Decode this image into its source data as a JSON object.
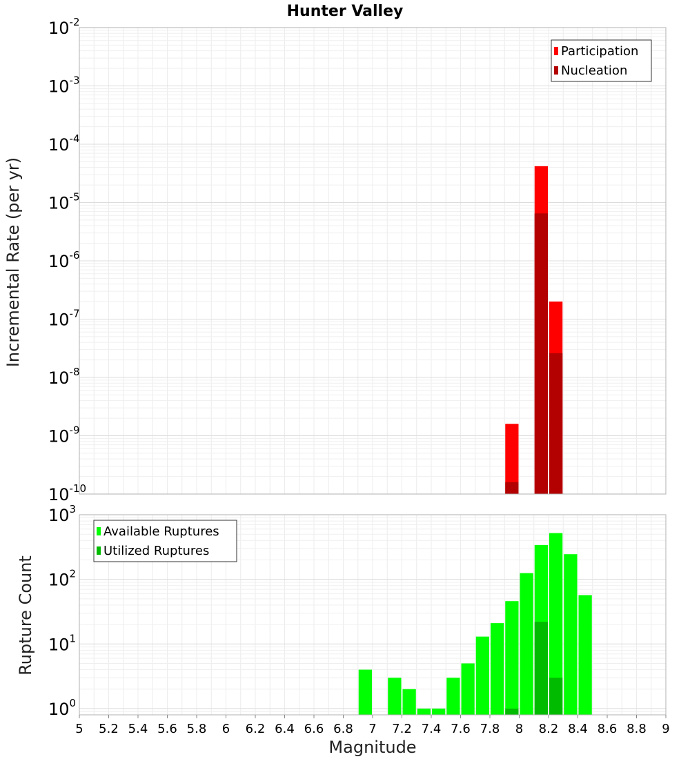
{
  "chart_data": [
    {
      "type": "bar",
      "title": "Hunter Valley",
      "ylabel": "Incremental Rate (per yr)",
      "xlabel": "",
      "yscale": "log",
      "ylim": [
        1e-10,
        0.01
      ],
      "xlim": [
        5,
        9
      ],
      "yticks": [
        {
          "base": "10",
          "exp": "-2",
          "value": 0.01
        },
        {
          "base": "10",
          "exp": "-3",
          "value": 0.001
        },
        {
          "base": "10",
          "exp": "-4",
          "value": 0.0001
        },
        {
          "base": "10",
          "exp": "-5",
          "value": 1e-05
        },
        {
          "base": "10",
          "exp": "-6",
          "value": 1e-06
        },
        {
          "base": "10",
          "exp": "-7",
          "value": 1e-07
        },
        {
          "base": "10",
          "exp": "-8",
          "value": 1e-08
        },
        {
          "base": "10",
          "exp": "-9",
          "value": 1e-09
        },
        {
          "base": "10",
          "exp": "-10",
          "value": 1e-10
        }
      ],
      "grid": true,
      "legend_position": "top-right",
      "series": [
        {
          "name": "Participation",
          "color": "#ff0000",
          "x": [
            7.95,
            8.15,
            8.25
          ],
          "values": [
            1.6e-09,
            4.2e-05,
            2e-07
          ]
        },
        {
          "name": "Nucleation",
          "color": "#b30000",
          "x": [
            7.95,
            8.15,
            8.25
          ],
          "values": [
            1.6e-10,
            6.5e-06,
            2.6e-08
          ]
        }
      ]
    },
    {
      "type": "bar",
      "title": "",
      "ylabel": "Rupture Count",
      "xlabel": "Magnitude",
      "yscale": "log",
      "ylim": [
        0.8,
        1000
      ],
      "xlim": [
        5,
        9
      ],
      "xticks": [
        "5",
        "5.2",
        "5.4",
        "5.6",
        "5.8",
        "6",
        "6.2",
        "6.4",
        "6.6",
        "6.8",
        "7",
        "7.2",
        "7.4",
        "7.6",
        "7.8",
        "8",
        "8.2",
        "8.4",
        "8.6",
        "8.8",
        "9"
      ],
      "yticks": [
        {
          "base": "10",
          "exp": "3",
          "value": 1000
        },
        {
          "base": "10",
          "exp": "2",
          "value": 100
        },
        {
          "base": "10",
          "exp": "1",
          "value": 10
        },
        {
          "base": "10",
          "exp": "0",
          "value": 1
        }
      ],
      "grid": true,
      "legend_position": "top-left",
      "series": [
        {
          "name": "Available Ruptures",
          "color": "#00ff00",
          "x": [
            6.95,
            7.15,
            7.25,
            7.35,
            7.45,
            7.55,
            7.65,
            7.75,
            7.85,
            7.95,
            8.05,
            8.15,
            8.25,
            8.35,
            8.45
          ],
          "values": [
            4,
            3,
            2,
            1,
            1,
            3,
            5,
            13,
            21,
            46,
            125,
            340,
            520,
            245,
            57
          ]
        },
        {
          "name": "Utilized Ruptures",
          "color": "#00bb00",
          "x": [
            7.95,
            8.15,
            8.25
          ],
          "values": [
            1,
            22,
            3
          ]
        }
      ]
    }
  ]
}
